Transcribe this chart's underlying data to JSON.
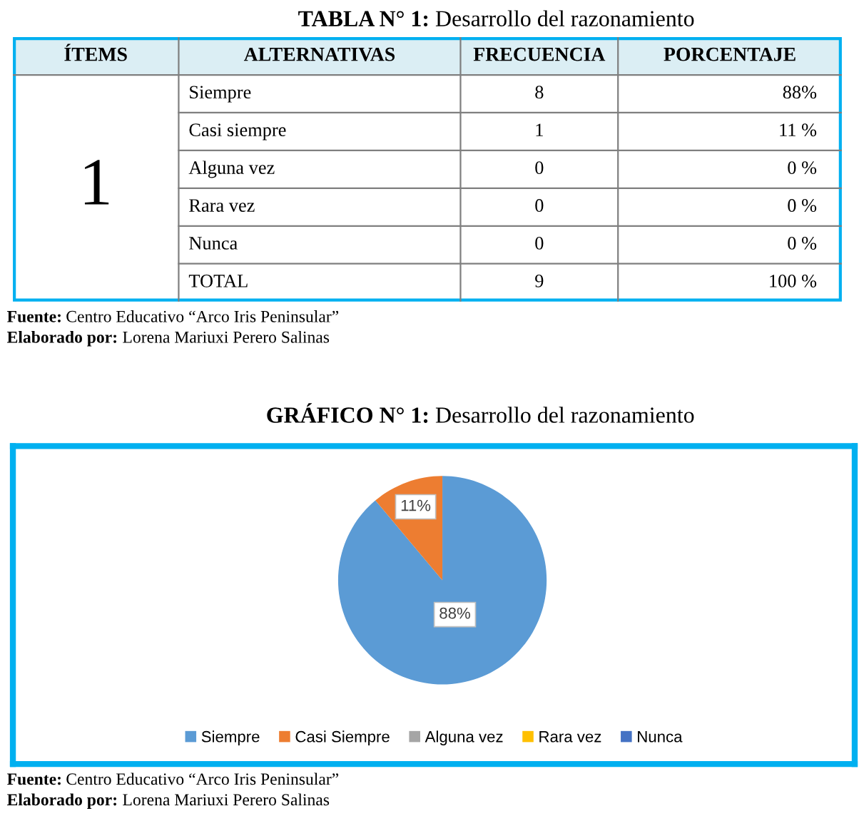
{
  "chart_data": [
    {
      "type": "other",
      "title": "TABLA N° 1: Desarrollo del razonamiento",
      "categories": [
        "ÍTEMS",
        "ALTERNATIVAS",
        "FRECUENCIA",
        "PORCENTAJE"
      ],
      "cell_labels": [
        [
          "1",
          "Siempre",
          "8",
          "88%"
        ],
        [
          null,
          "Casi siempre",
          "1",
          "11 %"
        ],
        [
          null,
          "Alguna vez",
          "0",
          "0 %"
        ],
        [
          null,
          "Rara vez",
          "0",
          "0 %"
        ],
        [
          null,
          "Nunca",
          "0",
          "0 %"
        ],
        [
          null,
          "TOTAL",
          "9",
          "100 %"
        ]
      ],
      "annotations": [
        "Fuente: Centro Educativo “Arco Iris Peninsular”",
        "Elaborado por: Lorena Mariuxi Perero Salinas"
      ]
    },
    {
      "type": "pie",
      "title": "GRÁFICO N° 1: Desarrollo del razonamiento",
      "categories": [
        "Siempre",
        "Casi Siempre",
        "Alguna vez",
        "Rara vez",
        "Nunca"
      ],
      "values": [
        88,
        11,
        0,
        0,
        0
      ],
      "colors": [
        "#5b9bd5",
        "#ed7d31",
        "#a5a5a5",
        "#ffc000",
        "#4472c4"
      ],
      "value_labels": [
        "88%",
        "11%",
        null,
        null,
        null
      ],
      "legend": "bottom",
      "annotations": [
        "Fuente: Centro Educativo “Arco Iris Peninsular”",
        "Elaborado por: Lorena Mariuxi Perero Salinas"
      ]
    }
  ]
}
